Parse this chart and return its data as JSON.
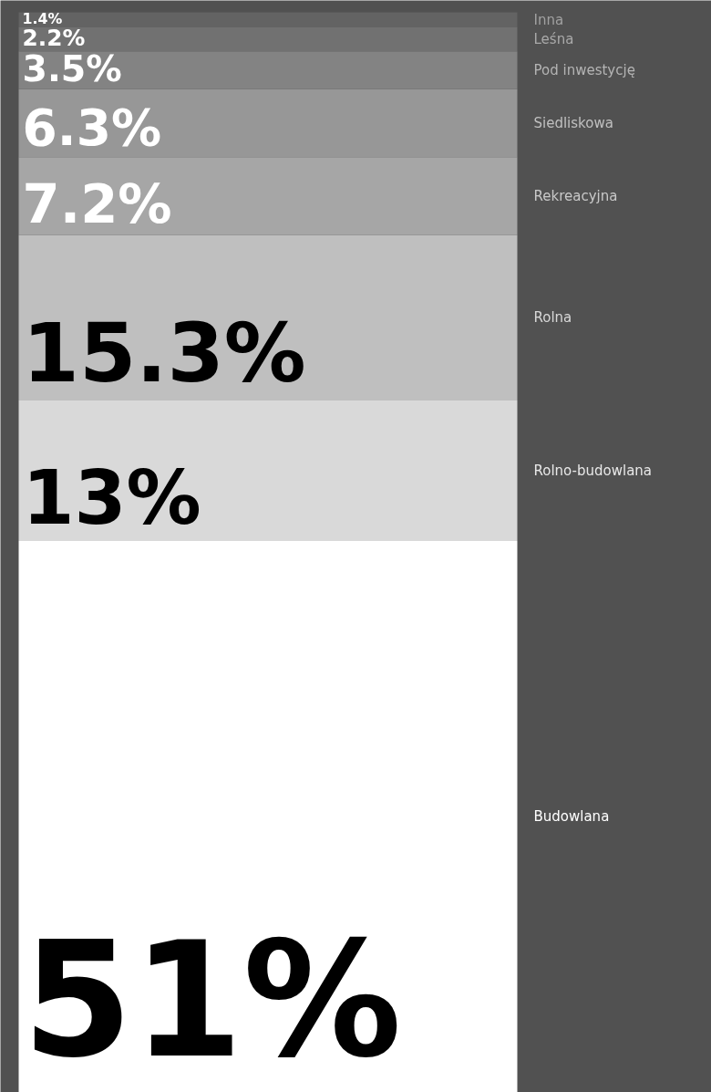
{
  "chart_data": {
    "type": "bar",
    "stacked": true,
    "categories": [
      null
    ],
    "tick_labels": false,
    "legend": false,
    "grid": false,
    "series": [
      {
        "name": "Budowlana",
        "color": "#ffffff",
        "values": [
          51
        ],
        "value_labels": [
          "51%"
        ]
      },
      {
        "name": "Rolno-budowlana",
        "color": "#d9d9d9",
        "values": [
          13
        ],
        "value_labels": [
          "13%"
        ]
      },
      {
        "name": "Rolna",
        "color": "#bfbfbf",
        "values": [
          15.3
        ],
        "value_labels": [
          "15.3%"
        ]
      },
      {
        "name": "Rekreacyjna",
        "color": "#a6a6a6",
        "values": [
          7.2
        ],
        "value_labels": [
          "7.2%"
        ]
      },
      {
        "name": "Siedliskowa",
        "color": "#979797",
        "values": [
          6.3
        ],
        "value_labels": [
          "6.3%"
        ]
      },
      {
        "name": "Pod inwestycję",
        "color": "#838383",
        "values": [
          3.5
        ],
        "value_labels": [
          "3.5%"
        ]
      },
      {
        "name": "Leśna",
        "color": "#717171",
        "values": [
          2.2
        ],
        "value_labels": [
          "2.2%"
        ]
      },
      {
        "name": "Inna",
        "color": "#636363",
        "values": [
          1.4
        ],
        "value_labels": [
          "1.4%"
        ]
      }
    ]
  }
}
